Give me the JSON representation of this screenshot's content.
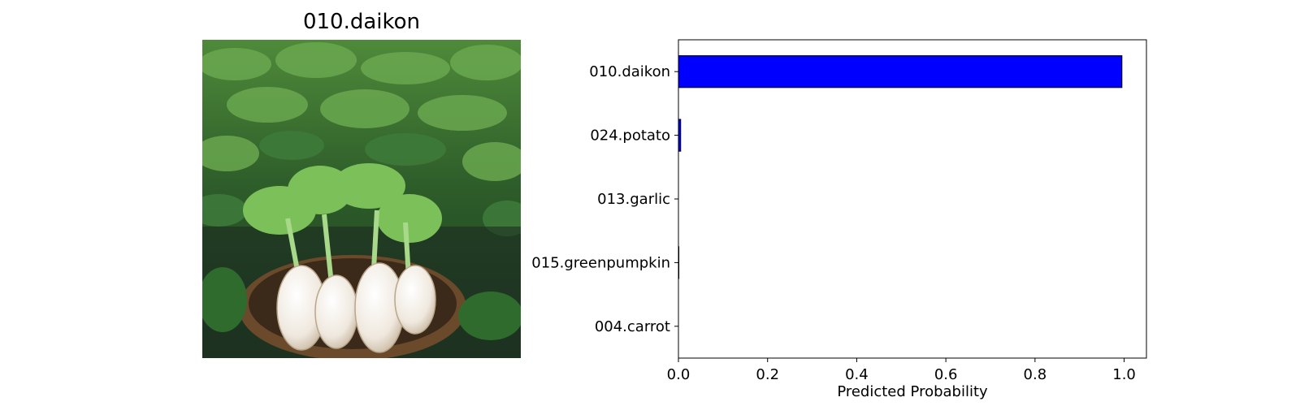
{
  "image_panel": {
    "title": "010.daikon"
  },
  "chart_data": {
    "type": "bar",
    "orientation": "horizontal",
    "categories": [
      "010.daikon",
      "024.potato",
      "013.garlic",
      "015.greenpumpkin",
      "004.carrot"
    ],
    "values": [
      0.995,
      0.005,
      0.0,
      0.001,
      0.0
    ],
    "xlabel": "Predicted Probability",
    "ylabel": "",
    "xlim": [
      0,
      1.05
    ],
    "xticks": [
      "0.0",
      "0.2",
      "0.4",
      "0.6",
      "0.8",
      "1.0"
    ],
    "bar_color": "#0000ff",
    "edge_color": "#000000",
    "grid": false
  }
}
